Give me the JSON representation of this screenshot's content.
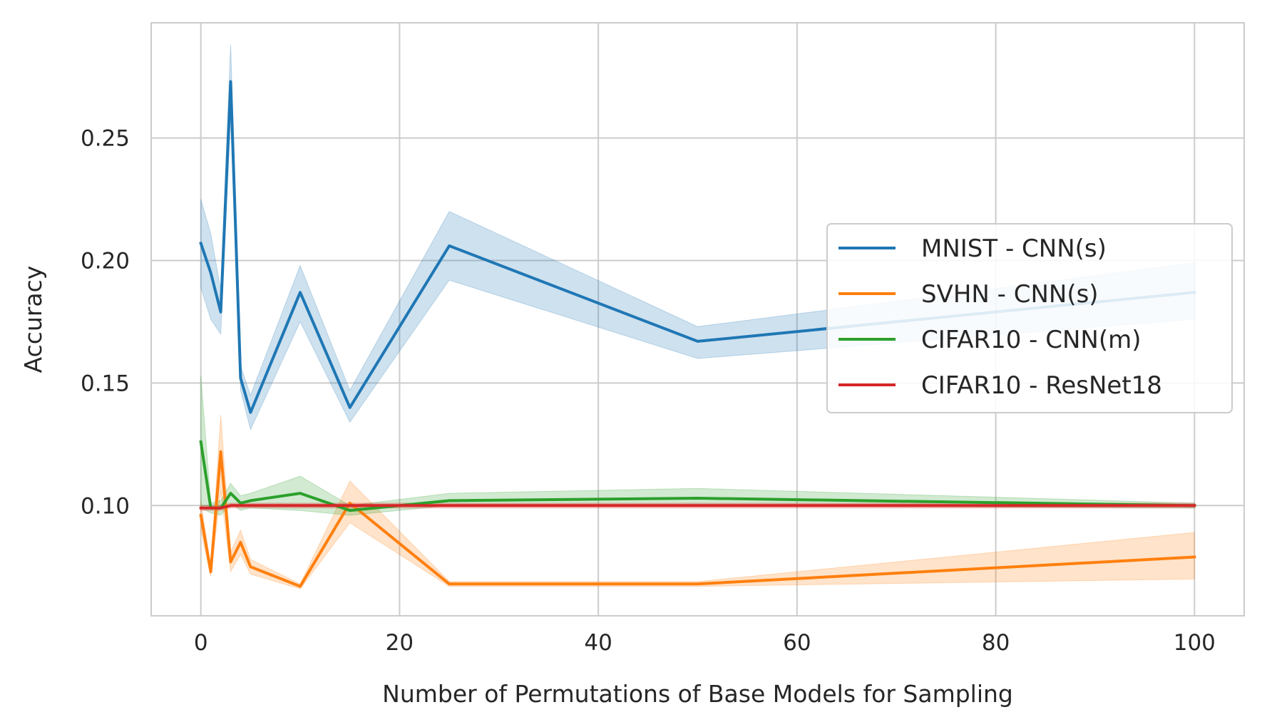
{
  "chart_data": {
    "type": "line",
    "title": "",
    "xlabel": "Number of Permutations of Base Models for Sampling",
    "ylabel": "Accuracy",
    "xlim": [
      -5,
      105
    ],
    "ylim": [
      0.055,
      0.297
    ],
    "xticks": [
      0,
      20,
      40,
      60,
      80,
      100
    ],
    "yticks": [
      0.1,
      0.15,
      0.2,
      0.25
    ],
    "xtick_labels": [
      "0",
      "20",
      "40",
      "60",
      "80",
      "100"
    ],
    "ytick_labels": [
      "0.10",
      "0.15",
      "0.20",
      "0.25"
    ],
    "grid": true,
    "legend_position": "center-right",
    "x": [
      0,
      1,
      2,
      3,
      4,
      5,
      10,
      15,
      25,
      50,
      100
    ],
    "series": [
      {
        "name": "MNIST - CNN(s)",
        "color": "#1f77b4",
        "values": [
          0.207,
          0.195,
          0.179,
          0.273,
          0.152,
          0.138,
          0.187,
          0.14,
          0.206,
          0.167,
          0.187
        ],
        "lower": [
          0.189,
          0.176,
          0.17,
          0.258,
          0.147,
          0.131,
          0.175,
          0.134,
          0.192,
          0.16,
          0.176
        ],
        "upper": [
          0.225,
          0.211,
          0.188,
          0.288,
          0.157,
          0.145,
          0.198,
          0.147,
          0.22,
          0.173,
          0.199
        ]
      },
      {
        "name": "SVHN - CNN(s)",
        "color": "#ff7f0e",
        "values": [
          0.096,
          0.073,
          0.122,
          0.077,
          0.085,
          0.075,
          0.067,
          0.101,
          0.068,
          0.068,
          0.079
        ],
        "lower": [
          0.09,
          0.071,
          0.106,
          0.073,
          0.08,
          0.072,
          0.066,
          0.093,
          0.067,
          0.067,
          0.07
        ],
        "upper": [
          0.102,
          0.075,
          0.137,
          0.081,
          0.09,
          0.078,
          0.068,
          0.11,
          0.069,
          0.069,
          0.089
        ]
      },
      {
        "name": "CIFAR10 - CNN(m)",
        "color": "#2ca02c",
        "values": [
          0.126,
          0.099,
          0.099,
          0.105,
          0.101,
          0.102,
          0.105,
          0.098,
          0.102,
          0.103,
          0.1
        ],
        "lower": [
          0.099,
          0.097,
          0.096,
          0.101,
          0.098,
          0.099,
          0.098,
          0.096,
          0.1,
          0.1,
          0.099
        ],
        "upper": [
          0.153,
          0.101,
          0.102,
          0.109,
          0.104,
          0.105,
          0.112,
          0.1,
          0.105,
          0.107,
          0.101
        ]
      },
      {
        "name": "CIFAR10 - ResNet18",
        "color": "#d62728",
        "values": [
          0.099,
          0.099,
          0.099,
          0.1,
          0.1,
          0.1,
          0.1,
          0.1,
          0.1,
          0.1,
          0.1
        ],
        "lower": [
          0.098,
          0.098,
          0.098,
          0.099,
          0.099,
          0.099,
          0.099,
          0.099,
          0.099,
          0.099,
          0.099
        ],
        "upper": [
          0.1,
          0.1,
          0.1,
          0.101,
          0.101,
          0.101,
          0.101,
          0.101,
          0.101,
          0.101,
          0.101
        ]
      }
    ]
  }
}
